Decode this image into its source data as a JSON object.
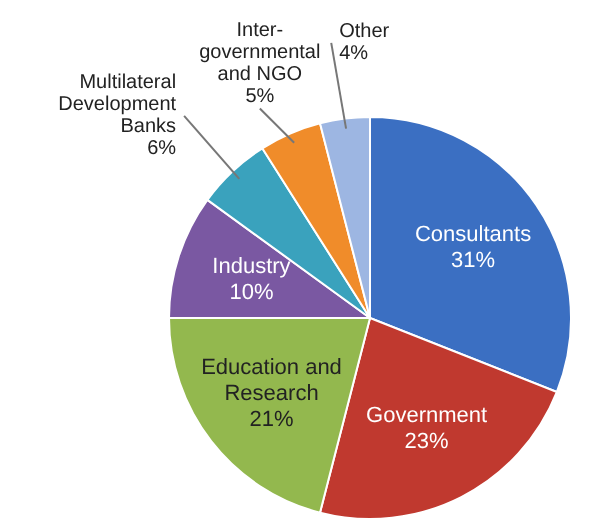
{
  "chart_data": {
    "type": "pie",
    "categories": [
      "Consultants",
      "Government",
      "Education and Research",
      "Industry",
      "Multilateral Development Banks",
      "Inter-governmental and NGO",
      "Other"
    ],
    "values": [
      31,
      23,
      21,
      10,
      6,
      5,
      4
    ],
    "colors": [
      "#3b6fc2",
      "#c0392f",
      "#93b84e",
      "#7a58a2",
      "#3aa2bd",
      "#f08c2a",
      "#9db6e2"
    ],
    "value_labels": [
      "31%",
      "23%",
      "21%",
      "10%",
      "6%",
      "5%",
      "4%"
    ],
    "legend": false
  }
}
